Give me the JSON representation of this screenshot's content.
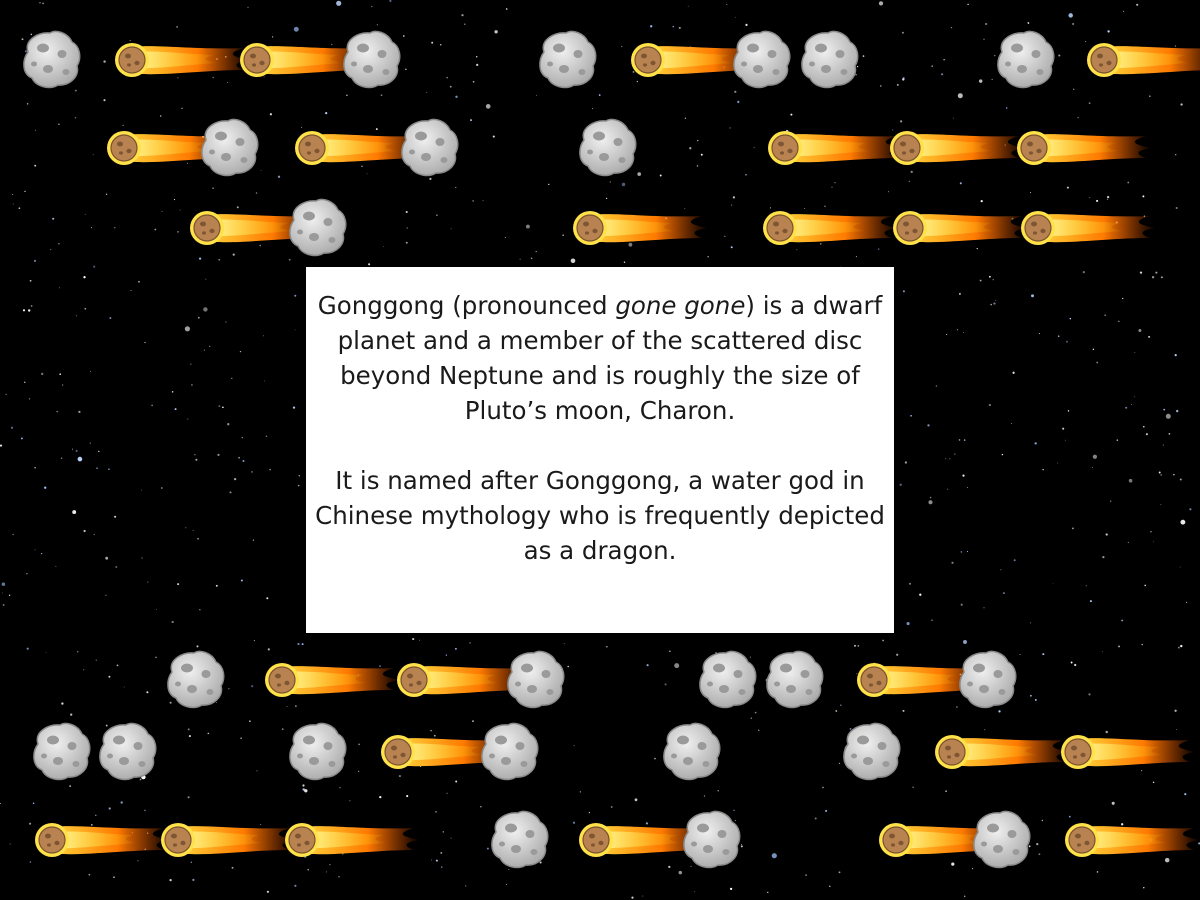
{
  "background": {
    "color": "#000000"
  },
  "icons": {
    "rock": "asteroid-icon",
    "fireball": "meteor-icon"
  },
  "colors": {
    "asteroid": "#d4d4d4",
    "meteor_flame": "#ff9a1f",
    "meteor_core": "#b88350"
  },
  "rows": [
    [
      "A",
      "M",
      "M",
      "A",
      "_",
      "_",
      "_",
      "_",
      "A",
      "M",
      "A",
      "A",
      "_",
      "_",
      "_",
      "A",
      "M"
    ],
    [
      "M",
      "A",
      "M",
      "A",
      "_",
      "_",
      "A",
      "_",
      "M",
      "M",
      "M"
    ],
    [
      "M",
      "A",
      "_",
      "_",
      "_",
      "M",
      "_",
      "M",
      "M",
      "M"
    ],
    [
      "A",
      "M",
      "M",
      "A",
      "_",
      "A",
      "A",
      "M",
      "A"
    ],
    [
      "A",
      "A",
      "_",
      "A",
      "M",
      "A",
      "_",
      "A",
      "_",
      "A",
      "M",
      "M"
    ],
    [
      "M",
      "M",
      "M",
      "_",
      "A",
      "M",
      "A",
      "_",
      "M",
      "A",
      "M"
    ]
  ],
  "card": {
    "p1_before": "Gonggong (pronounced ",
    "p1_italic": "gone gone",
    "p1_after": ") is a dwarf planet and a member of the scattered disc beyond Neptune and is roughly the size of Pluto’s moon, Charon.",
    "p2": "It is named after Gonggong, a water god in Chinese mythology who is frequently depicted as a dragon."
  }
}
